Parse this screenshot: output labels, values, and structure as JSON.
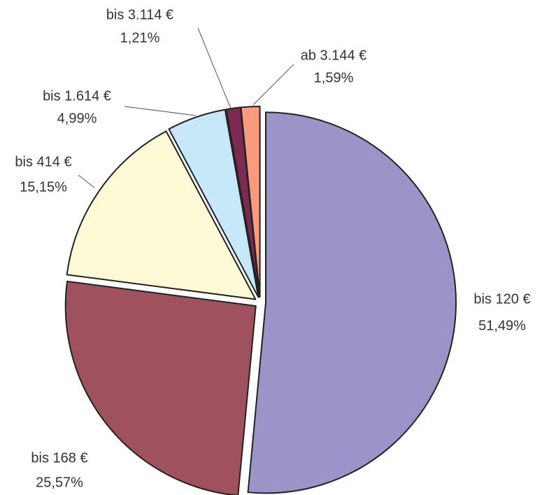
{
  "chart_data": {
    "type": "pie",
    "categories": [
      "bis 120 €",
      "bis 168 €",
      "bis 414 €",
      "bis 1.614 €",
      "bis 3.114 €",
      "ab 3.144 €"
    ],
    "values": [
      51.49,
      25.57,
      15.15,
      4.99,
      1.21,
      1.59
    ],
    "value_labels": [
      "51,49%",
      "25,57%",
      "15,15%",
      "4,99%",
      "1,21%",
      "1,59%"
    ],
    "colors": [
      "#9b94c8",
      "#a0515e",
      "#fffad6",
      "#c6e8f8",
      "#7d2a52",
      "#f9997e"
    ]
  }
}
